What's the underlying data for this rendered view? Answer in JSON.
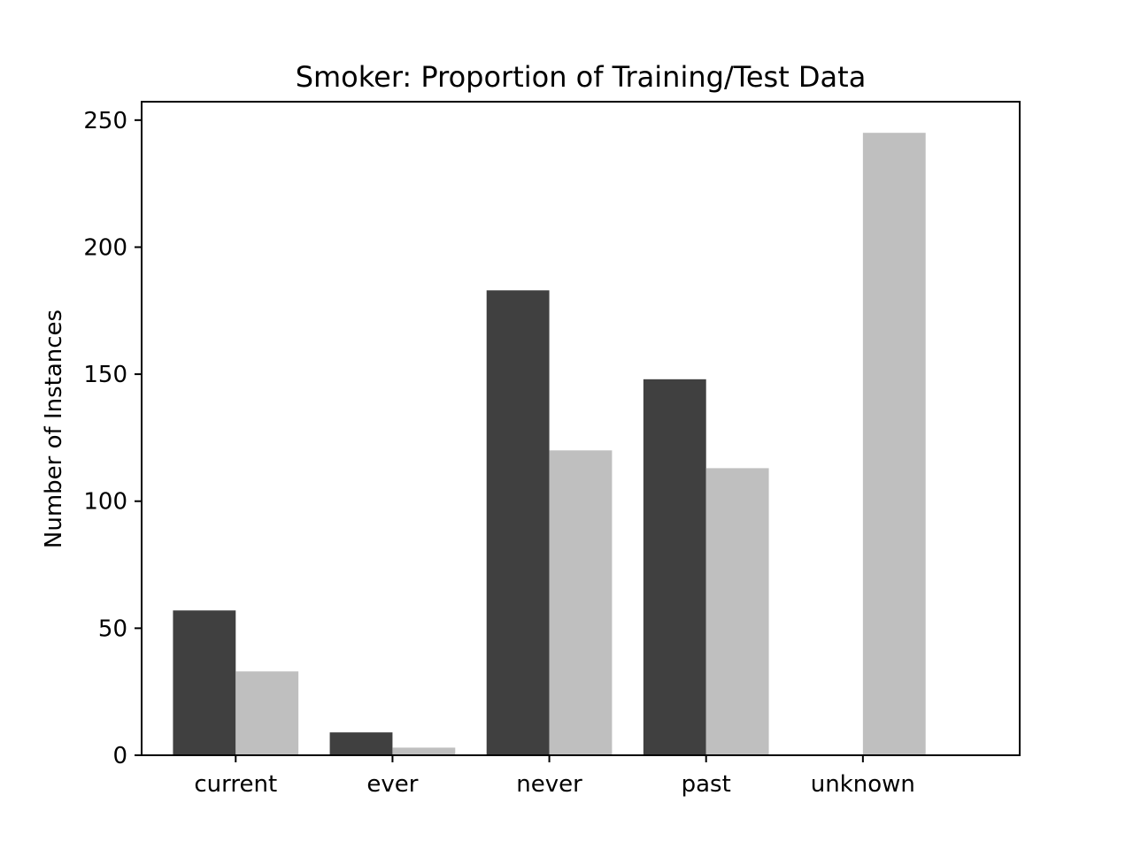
{
  "chart_data": {
    "type": "bar",
    "title": "Smoker: Proportion of Training/Test Data",
    "xlabel": "",
    "ylabel": "Number of Instances",
    "categories": [
      "current",
      "ever",
      "never",
      "past",
      "unknown"
    ],
    "series": [
      {
        "values": [
          57,
          9,
          183,
          148,
          0
        ],
        "color": "#404040"
      },
      {
        "values": [
          33,
          3,
          120,
          113,
          245
        ],
        "color": "#bfbfbf"
      }
    ],
    "ylim": [
      0,
      257.25
    ],
    "yticks": [
      0,
      50,
      100,
      150,
      200,
      250
    ],
    "grid": false,
    "legend": "none"
  }
}
